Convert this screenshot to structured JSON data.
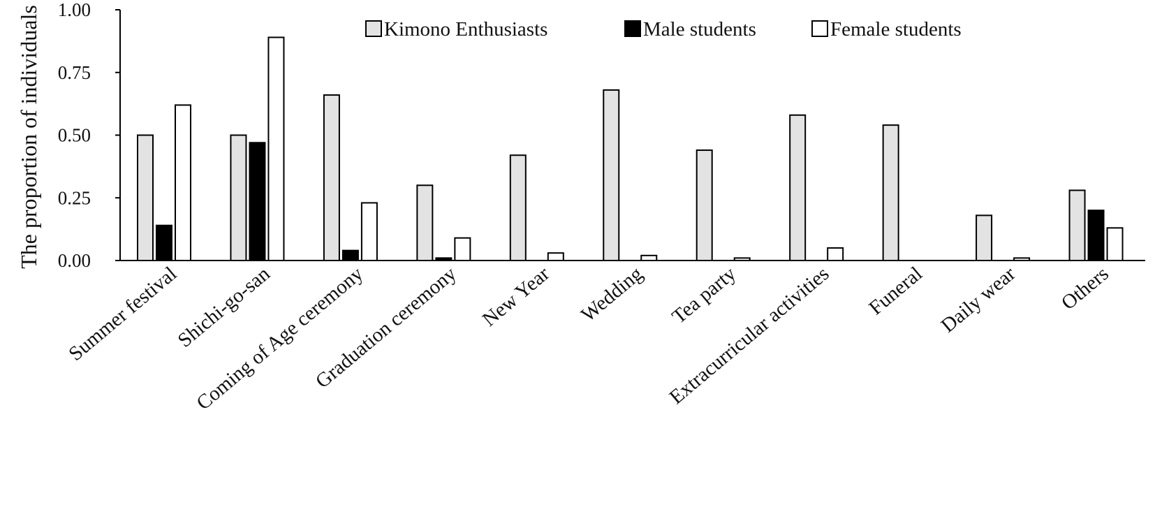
{
  "chart_data": {
    "type": "bar",
    "title": "",
    "xlabel": "",
    "ylabel": "The proportion of individuals",
    "ylim": [
      0,
      1
    ],
    "yticks": [
      "0.00",
      "0.25",
      "0.50",
      "0.75",
      "1.00"
    ],
    "ytick_values": [
      0,
      0.25,
      0.5,
      0.75,
      1
    ],
    "grid": false,
    "legend_position": "top-right",
    "categories": [
      "Summer festival",
      "Shichi-go-san",
      "Coming of Age ceremony",
      "Graduation ceremony",
      "New Year",
      "Wedding",
      "Tea party",
      "Extracurricular activities",
      "Funeral",
      "Daily wear",
      "Others"
    ],
    "series": [
      {
        "name": "Kimono Enthusiasts",
        "color": "#e3e3e3",
        "values": [
          0.5,
          0.5,
          0.66,
          0.3,
          0.42,
          0.68,
          0.44,
          0.58,
          0.54,
          0.18,
          0.28
        ]
      },
      {
        "name": "Male students",
        "color": "#000000",
        "values": [
          0.14,
          0.47,
          0.04,
          0.01,
          0.0,
          0.0,
          0.0,
          0.0,
          0.0,
          0.0,
          0.2
        ]
      },
      {
        "name": "Female students",
        "color": "#ffffff",
        "values": [
          0.62,
          0.89,
          0.23,
          0.09,
          0.03,
          0.02,
          0.01,
          0.05,
          0.0,
          0.01,
          0.13
        ]
      }
    ]
  }
}
